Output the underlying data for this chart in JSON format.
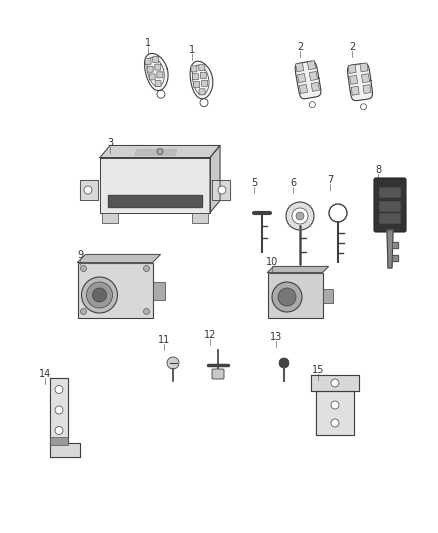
{
  "bg_color": "#ffffff",
  "line_color": "#404040",
  "label_color": "#333333",
  "fig_width": 4.38,
  "fig_height": 5.33,
  "dpi": 100
}
